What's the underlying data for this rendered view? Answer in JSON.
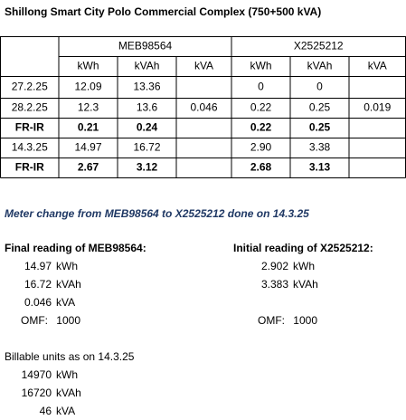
{
  "title": "Shillong Smart City Polo Commercial Complex (750+500 kVA)",
  "table": {
    "groups": [
      "MEB98564",
      "X2525212"
    ],
    "units": [
      "kWh",
      "kVAh",
      "kVA",
      "kWh",
      "kVAh",
      "kVA"
    ],
    "rows": [
      [
        "27.2.25",
        "12.09",
        "13.36",
        null,
        "0",
        "0",
        null
      ],
      [
        "28.2.25",
        "12.3",
        "13.6",
        "0.046",
        "0.22",
        "0.25",
        "0.019"
      ],
      [
        "FR-IR",
        "0.21",
        "0.24",
        null,
        "0.22",
        "0.25",
        null
      ],
      [
        "14.3.25",
        "14.97",
        "16.72",
        null,
        "2.90",
        "3.38",
        null
      ],
      [
        "FR-IR",
        "2.67",
        "3.12",
        null,
        "2.68",
        "3.13",
        null
      ]
    ]
  },
  "note": "Meter change from MEB98564 to X2525212 done on 14.3.25",
  "final_reading": {
    "heading": "Final reading of MEB98564:",
    "items": [
      {
        "value": "14.97",
        "unit": "kWh"
      },
      {
        "value": "16.72",
        "unit": "kVAh"
      },
      {
        "value": "0.046",
        "unit": "kVA"
      }
    ],
    "omf_label": "OMF:",
    "omf": "1000"
  },
  "initial_reading": {
    "heading": "Initial reading of X2525212:",
    "items": [
      {
        "value": "2.902",
        "unit": "kWh"
      },
      {
        "value": "3.383",
        "unit": "kVAh"
      }
    ],
    "omf_label": "OMF:",
    "omf": "1000"
  },
  "billable": {
    "heading": "Billable units as on 14.3.25",
    "items": [
      {
        "value": "14970",
        "unit": "kWh"
      },
      {
        "value": "16720",
        "unit": "kVAh"
      },
      {
        "value": "46",
        "unit": "kVA"
      }
    ]
  }
}
